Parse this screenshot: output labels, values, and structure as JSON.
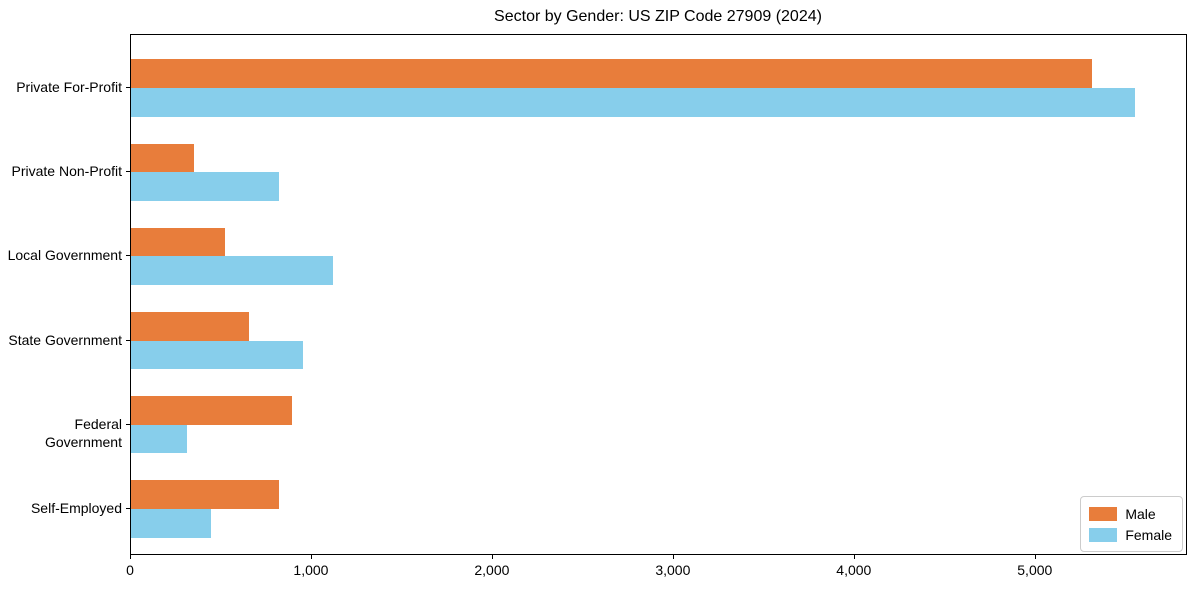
{
  "title": "Sector by Gender: US ZIP Code 27909 (2024)",
  "colors": {
    "male": "#E87D3B",
    "female": "#87CEEB",
    "axis": "#000000",
    "legend_border": "#cccccc",
    "background": "#ffffff"
  },
  "legend": {
    "position": "lower right",
    "items": [
      {
        "label": "Male"
      },
      {
        "label": "Female"
      }
    ]
  },
  "chart_data": {
    "type": "bar",
    "orientation": "horizontal",
    "title": "Sector by Gender: US ZIP Code 27909 (2024)",
    "categories": [
      "Private For-Profit",
      "Private Non-Profit",
      "Local Government",
      "State Government",
      "Federal Government",
      "Self-Employed"
    ],
    "series": [
      {
        "name": "Male",
        "color": "#E87D3B",
        "values": [
          5310,
          350,
          520,
          650,
          890,
          820
        ]
      },
      {
        "name": "Female",
        "color": "#87CEEB",
        "values": [
          5550,
          820,
          1115,
          950,
          310,
          440
        ]
      }
    ],
    "xlabel": "",
    "ylabel": "",
    "xlim": [
      0,
      5830
    ],
    "xticks": [
      0,
      1000,
      2000,
      3000,
      4000,
      5000
    ],
    "xtick_labels": [
      "0",
      "1,000",
      "2,000",
      "3,000",
      "4,000",
      "5,000"
    ],
    "grid": false,
    "legend_position": "lower right"
  }
}
